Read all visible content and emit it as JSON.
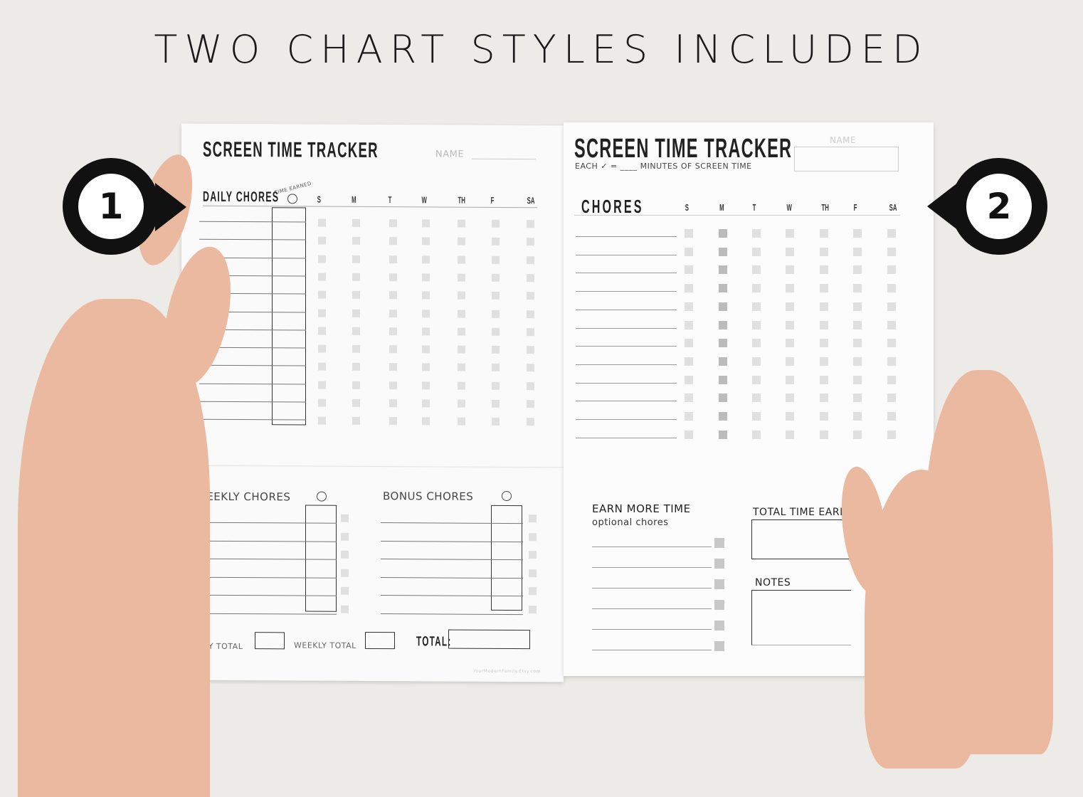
{
  "headline": "TWO CHART STYLES INCLUDED",
  "markers": [
    "1",
    "2"
  ],
  "left_page": {
    "title": "SCREEN TIME TRACKER",
    "name_label": "NAME",
    "daily_chores": "DAILY CHORES",
    "time_earned": "TIME EARNED",
    "days": [
      "S",
      "M",
      "T",
      "W",
      "TH",
      "F",
      "SA"
    ],
    "weekly_chores": "WEEKLY CHORES",
    "bonus_chores": "BONUS CHORES",
    "daily_total": "DAILY TOTAL",
    "weekly_total": "WEEKLY TOTAL",
    "total": "TOTAL:",
    "footer": "YourModernFamily.Etsy.com"
  },
  "right_page": {
    "title": "SCREEN TIME TRACKER",
    "subtitle": "EACH ✓ = ____ MINUTES OF SCREEN TIME",
    "name_label": "NAME",
    "chores": "CHORES",
    "days": [
      "S",
      "M",
      "T",
      "W",
      "TH",
      "F",
      "SA"
    ],
    "earn_more": "EARN MORE TIME",
    "optional": "optional chores",
    "total_time_earned": "TOTAL TIME EARI",
    "notes": "NOTES"
  }
}
